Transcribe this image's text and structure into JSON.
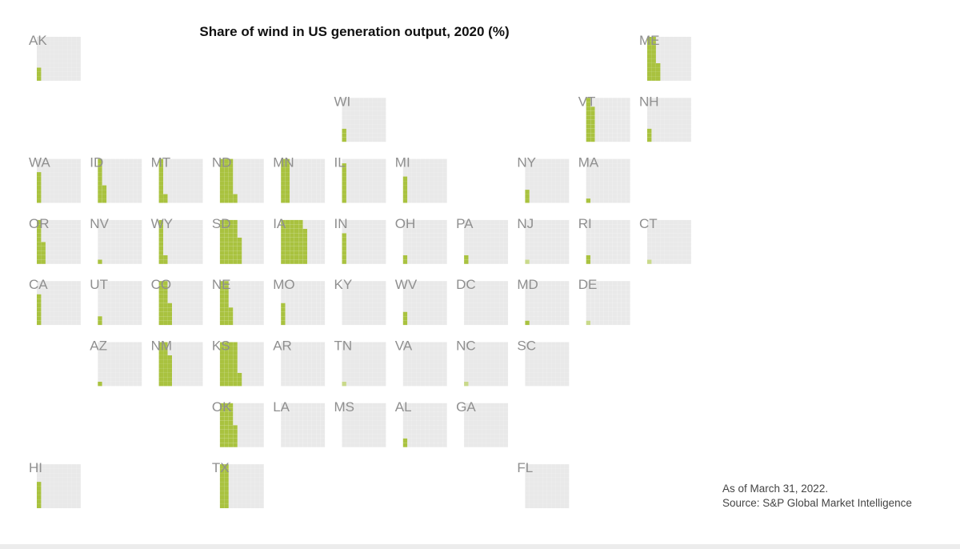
{
  "chart_data": {
    "type": "waffle-tile-map",
    "title": "Share of wind in US generation output, 2020 (%)",
    "unit": "%",
    "cells_per_tile": 100,
    "colors": {
      "filled": "#a9c23f",
      "empty": "#e9e9e9",
      "label": "#8f8f8f"
    },
    "states": [
      {
        "code": "AK",
        "row": 0,
        "col": 0,
        "value": 3
      },
      {
        "code": "ME",
        "row": 0,
        "col": 10,
        "value": 24
      },
      {
        "code": "WI",
        "row": 1,
        "col": 5,
        "value": 3
      },
      {
        "code": "VT",
        "row": 1,
        "col": 9,
        "value": 18
      },
      {
        "code": "NH",
        "row": 1,
        "col": 10,
        "value": 3
      },
      {
        "code": "WA",
        "row": 2,
        "col": 0,
        "value": 7
      },
      {
        "code": "ID",
        "row": 2,
        "col": 1,
        "value": 14
      },
      {
        "code": "MT",
        "row": 2,
        "col": 2,
        "value": 12
      },
      {
        "code": "ND",
        "row": 2,
        "col": 3,
        "value": 32
      },
      {
        "code": "MN",
        "row": 2,
        "col": 4,
        "value": 20
      },
      {
        "code": "IL",
        "row": 2,
        "col": 5,
        "value": 9
      },
      {
        "code": "MI",
        "row": 2,
        "col": 6,
        "value": 6
      },
      {
        "code": "NY",
        "row": 2,
        "col": 8,
        "value": 3
      },
      {
        "code": "MA",
        "row": 2,
        "col": 9,
        "value": 1
      },
      {
        "code": "OR",
        "row": 3,
        "col": 0,
        "value": 15
      },
      {
        "code": "NV",
        "row": 3,
        "col": 1,
        "value": 1
      },
      {
        "code": "WY",
        "row": 3,
        "col": 2,
        "value": 12
      },
      {
        "code": "SD",
        "row": 3,
        "col": 3,
        "value": 46
      },
      {
        "code": "IA",
        "row": 3,
        "col": 4,
        "value": 58
      },
      {
        "code": "IN",
        "row": 3,
        "col": 5,
        "value": 7
      },
      {
        "code": "OH",
        "row": 3,
        "col": 6,
        "value": 2
      },
      {
        "code": "PA",
        "row": 3,
        "col": 7,
        "value": 2
      },
      {
        "code": "NJ",
        "row": 3,
        "col": 8,
        "value": 0.5
      },
      {
        "code": "RI",
        "row": 3,
        "col": 9,
        "value": 2
      },
      {
        "code": "CT",
        "row": 3,
        "col": 10,
        "value": 0.5
      },
      {
        "code": "CA",
        "row": 4,
        "col": 0,
        "value": 7
      },
      {
        "code": "UT",
        "row": 4,
        "col": 1,
        "value": 2
      },
      {
        "code": "CO",
        "row": 4,
        "col": 2,
        "value": 25
      },
      {
        "code": "NE",
        "row": 4,
        "col": 3,
        "value": 24
      },
      {
        "code": "MO",
        "row": 4,
        "col": 4,
        "value": 5
      },
      {
        "code": "KY",
        "row": 4,
        "col": 5,
        "value": 0
      },
      {
        "code": "WV",
        "row": 4,
        "col": 6,
        "value": 3
      },
      {
        "code": "DC",
        "row": 4,
        "col": 7,
        "value": 0
      },
      {
        "code": "MD",
        "row": 4,
        "col": 8,
        "value": 1
      },
      {
        "code": "DE",
        "row": 4,
        "col": 9,
        "value": 0.5
      },
      {
        "code": "AZ",
        "row": 5,
        "col": 1,
        "value": 1
      },
      {
        "code": "NM",
        "row": 5,
        "col": 2,
        "value": 27
      },
      {
        "code": "KS",
        "row": 5,
        "col": 3,
        "value": 43
      },
      {
        "code": "AR",
        "row": 5,
        "col": 4,
        "value": 0
      },
      {
        "code": "TN",
        "row": 5,
        "col": 5,
        "value": 0.5
      },
      {
        "code": "VA",
        "row": 5,
        "col": 6,
        "value": 0
      },
      {
        "code": "NC",
        "row": 5,
        "col": 7,
        "value": 0.5
      },
      {
        "code": "SC",
        "row": 5,
        "col": 8,
        "value": 0
      },
      {
        "code": "OK",
        "row": 6,
        "col": 3,
        "value": 35
      },
      {
        "code": "LA",
        "row": 6,
        "col": 4,
        "value": 0
      },
      {
        "code": "MS",
        "row": 6,
        "col": 5,
        "value": 0
      },
      {
        "code": "AL",
        "row": 6,
        "col": 6,
        "value": 2
      },
      {
        "code": "GA",
        "row": 6,
        "col": 7,
        "value": 0
      },
      {
        "code": "HI",
        "row": 7,
        "col": 0,
        "value": 6
      },
      {
        "code": "TX",
        "row": 7,
        "col": 3,
        "value": 20
      },
      {
        "code": "FL",
        "row": 7,
        "col": 8,
        "value": 0
      }
    ]
  },
  "notes": {
    "as_of": "As of March 31, 2022.",
    "source": "Source: S&P Global Market Intelligence"
  }
}
